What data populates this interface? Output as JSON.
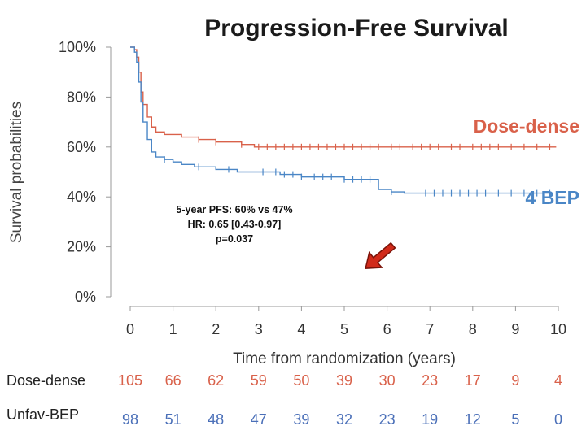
{
  "chart_data": {
    "type": "line",
    "subtype": "kaplan-meier",
    "title": "Progression-Free Survival",
    "xlabel": "Time from randomization (years)",
    "ylabel": "Survival probabilities",
    "xlim": [
      0,
      10
    ],
    "ylim": [
      0,
      1
    ],
    "x_ticks": [
      "0",
      "1",
      "2",
      "3",
      "4",
      "5",
      "6",
      "7",
      "8",
      "9",
      "10"
    ],
    "y_ticks": [
      "0%",
      "20%",
      "40%",
      "60%",
      "80%",
      "100%"
    ],
    "grid": false,
    "series": [
      {
        "name": "Dose-dense",
        "color": "#d9614a",
        "steps": [
          [
            0,
            1.0
          ],
          [
            0.1,
            0.99
          ],
          [
            0.15,
            0.96
          ],
          [
            0.2,
            0.9
          ],
          [
            0.25,
            0.82
          ],
          [
            0.3,
            0.77
          ],
          [
            0.4,
            0.72
          ],
          [
            0.5,
            0.68
          ],
          [
            0.6,
            0.66
          ],
          [
            0.8,
            0.65
          ],
          [
            1.2,
            0.64
          ],
          [
            1.6,
            0.63
          ],
          [
            2.0,
            0.62
          ],
          [
            2.6,
            0.61
          ],
          [
            2.9,
            0.6
          ],
          [
            9.95,
            0.6
          ]
        ],
        "censor_x": [
          1.6,
          2.0,
          2.6,
          3.0,
          3.2,
          3.4,
          3.6,
          3.8,
          4.0,
          4.2,
          4.4,
          4.6,
          4.8,
          5.0,
          5.2,
          5.4,
          5.6,
          5.8,
          6.1,
          6.3,
          6.6,
          6.8,
          7.0,
          7.2,
          7.5,
          7.7,
          8.0,
          8.2,
          8.4,
          8.6,
          8.9,
          9.2,
          9.5,
          9.8
        ]
      },
      {
        "name": "4 BEP",
        "color": "#4a86c6",
        "steps": [
          [
            0,
            1.0
          ],
          [
            0.1,
            0.98
          ],
          [
            0.15,
            0.94
          ],
          [
            0.2,
            0.86
          ],
          [
            0.25,
            0.78
          ],
          [
            0.3,
            0.7
          ],
          [
            0.4,
            0.63
          ],
          [
            0.5,
            0.58
          ],
          [
            0.6,
            0.56
          ],
          [
            0.8,
            0.55
          ],
          [
            1.0,
            0.54
          ],
          [
            1.2,
            0.53
          ],
          [
            1.5,
            0.52
          ],
          [
            2.0,
            0.51
          ],
          [
            2.5,
            0.5
          ],
          [
            3.4,
            0.5
          ],
          [
            3.5,
            0.49
          ],
          [
            4.0,
            0.48
          ],
          [
            5.0,
            0.47
          ],
          [
            5.7,
            0.47
          ],
          [
            5.8,
            0.43
          ],
          [
            6.1,
            0.42
          ],
          [
            6.4,
            0.415
          ],
          [
            9.8,
            0.415
          ]
        ],
        "censor_x": [
          0.8,
          1.6,
          2.3,
          3.1,
          3.4,
          3.6,
          3.8,
          4.0,
          4.3,
          4.5,
          4.7,
          5.0,
          5.2,
          5.4,
          5.6,
          6.1,
          6.9,
          7.1,
          7.3,
          7.5,
          7.7,
          7.9,
          8.1,
          8.3,
          8.6,
          8.9,
          9.2,
          9.5,
          9.8
        ]
      }
    ],
    "series_labels": [
      "Dose-dense",
      "4 BEP"
    ],
    "annotation": [
      "5-year PFS: 60% vs 47%",
      "HR: 0.65 [0.43-0.97]",
      "p=0.037"
    ],
    "risk_table": [
      {
        "label": "Dose-dense",
        "color": "#d9614a",
        "values": [
          105,
          66,
          62,
          59,
          50,
          39,
          30,
          23,
          17,
          9,
          4
        ]
      },
      {
        "label": "Unfav-BEP",
        "color": "#4a6fb8",
        "values": [
          98,
          51,
          48,
          47,
          39,
          32,
          23,
          19,
          12,
          5,
          0
        ]
      }
    ]
  },
  "pointer_arrow": {
    "color": "#d12a1a",
    "icon": "arrow-pointer"
  }
}
